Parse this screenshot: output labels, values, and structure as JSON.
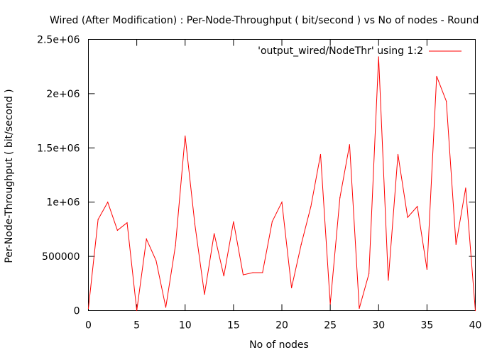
{
  "chart_data": {
    "type": "line",
    "title": "Wired (After Modification) : Per-Node-Throughput ( bit/second ) vs No of nodes - Round",
    "xlabel": "No of nodes",
    "ylabel": "Per-Node-Throughput ( bit/second )",
    "xlim": [
      0,
      40
    ],
    "ylim": [
      0,
      2500000
    ],
    "xticks": [
      0,
      5,
      10,
      15,
      20,
      25,
      30,
      35,
      40
    ],
    "xtick_labels": [
      "0",
      "5",
      "10",
      "15",
      "20",
      "25",
      "30",
      "35",
      "40"
    ],
    "yticks": [
      0,
      500000,
      1000000,
      1500000,
      2000000,
      2500000
    ],
    "ytick_labels": [
      "0",
      "500000",
      "1e+06",
      "1.5e+06",
      "2e+06",
      "2.5e+06"
    ],
    "grid": false,
    "legend_position": "top-right",
    "series": [
      {
        "name": "'output_wired/NodeThr' using 1:2",
        "color": "#ff0000",
        "x": [
          0,
          1,
          2,
          3,
          4,
          5,
          6,
          7,
          8,
          9,
          10,
          11,
          12,
          13,
          14,
          15,
          16,
          17,
          18,
          19,
          20,
          21,
          22,
          23,
          24,
          25,
          26,
          27,
          28,
          29,
          30,
          31,
          32,
          33,
          34,
          35,
          36,
          37,
          38,
          39,
          40
        ],
        "y": [
          20000,
          840000,
          1000000,
          740000,
          810000,
          0,
          660000,
          460000,
          30000,
          600000,
          1610000,
          800000,
          150000,
          710000,
          320000,
          820000,
          330000,
          350000,
          350000,
          820000,
          1000000,
          210000,
          610000,
          960000,
          1440000,
          60000,
          1040000,
          1530000,
          20000,
          340000,
          2340000,
          280000,
          1440000,
          860000,
          960000,
          380000,
          2160000,
          1930000,
          610000,
          1130000,
          0
        ]
      }
    ]
  }
}
